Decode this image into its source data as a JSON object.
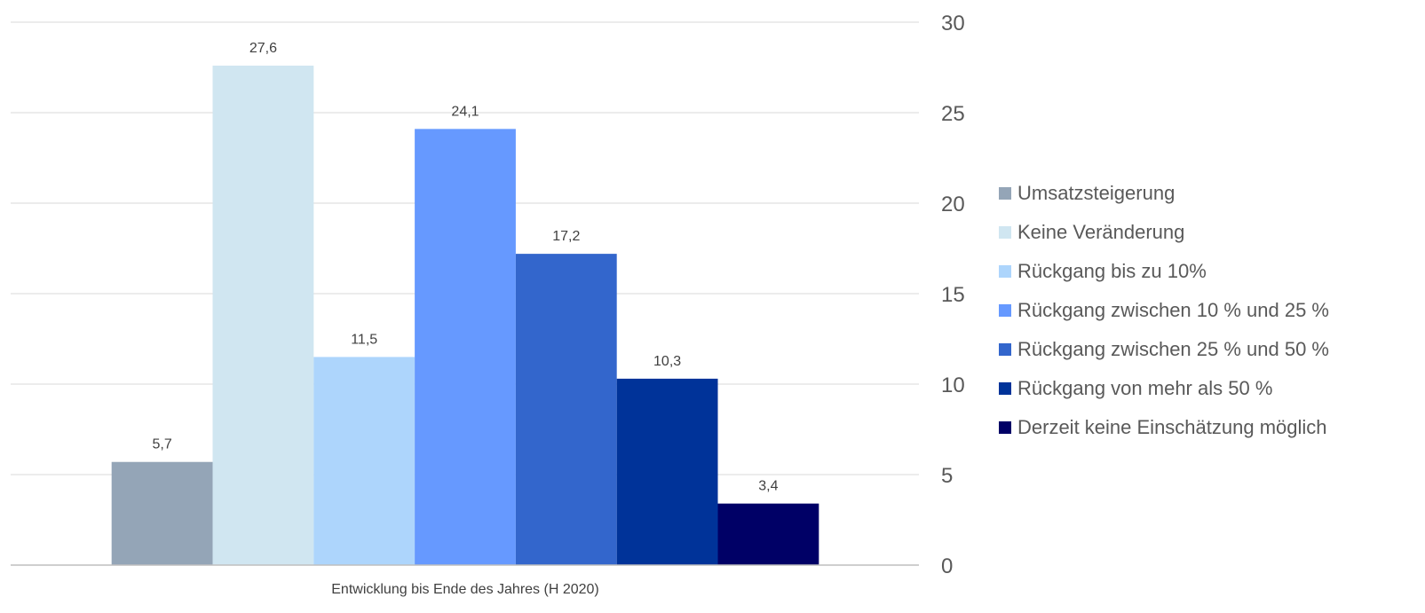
{
  "chart_data": {
    "type": "bar",
    "xlabel": "Entwicklung bis Ende des Jahres (H 2020)",
    "ylabel": "",
    "ylim": [
      0,
      30
    ],
    "yticks": [
      0,
      5,
      10,
      15,
      20,
      25,
      30
    ],
    "y_axis_position": "right",
    "grid": true,
    "legend_position": "right",
    "series": [
      {
        "name": "Umsatzsteigerung",
        "value": 5.7,
        "label": "5,7",
        "color": "#94A5B7"
      },
      {
        "name": "Keine Veränderung",
        "value": 27.6,
        "label": "27,6",
        "color": "#D0E6F1"
      },
      {
        "name": "Rückgang bis zu 10%",
        "value": 11.5,
        "label": "11,5",
        "color": "#ADD5FC"
      },
      {
        "name": "Rückgang zwischen 10 % und 25 %",
        "value": 24.1,
        "label": "24,1",
        "color": "#6699FF"
      },
      {
        "name": "Rückgang zwischen 25 % und 50 %",
        "value": 17.2,
        "label": "17,2",
        "color": "#3366CC"
      },
      {
        "name": "Rückgang von mehr als 50 %",
        "value": 10.3,
        "label": "10,3",
        "color": "#003399"
      },
      {
        "name": "Derzeit keine Einschätzung möglich",
        "value": 3.4,
        "label": "3,4",
        "color": "#000066"
      }
    ]
  }
}
